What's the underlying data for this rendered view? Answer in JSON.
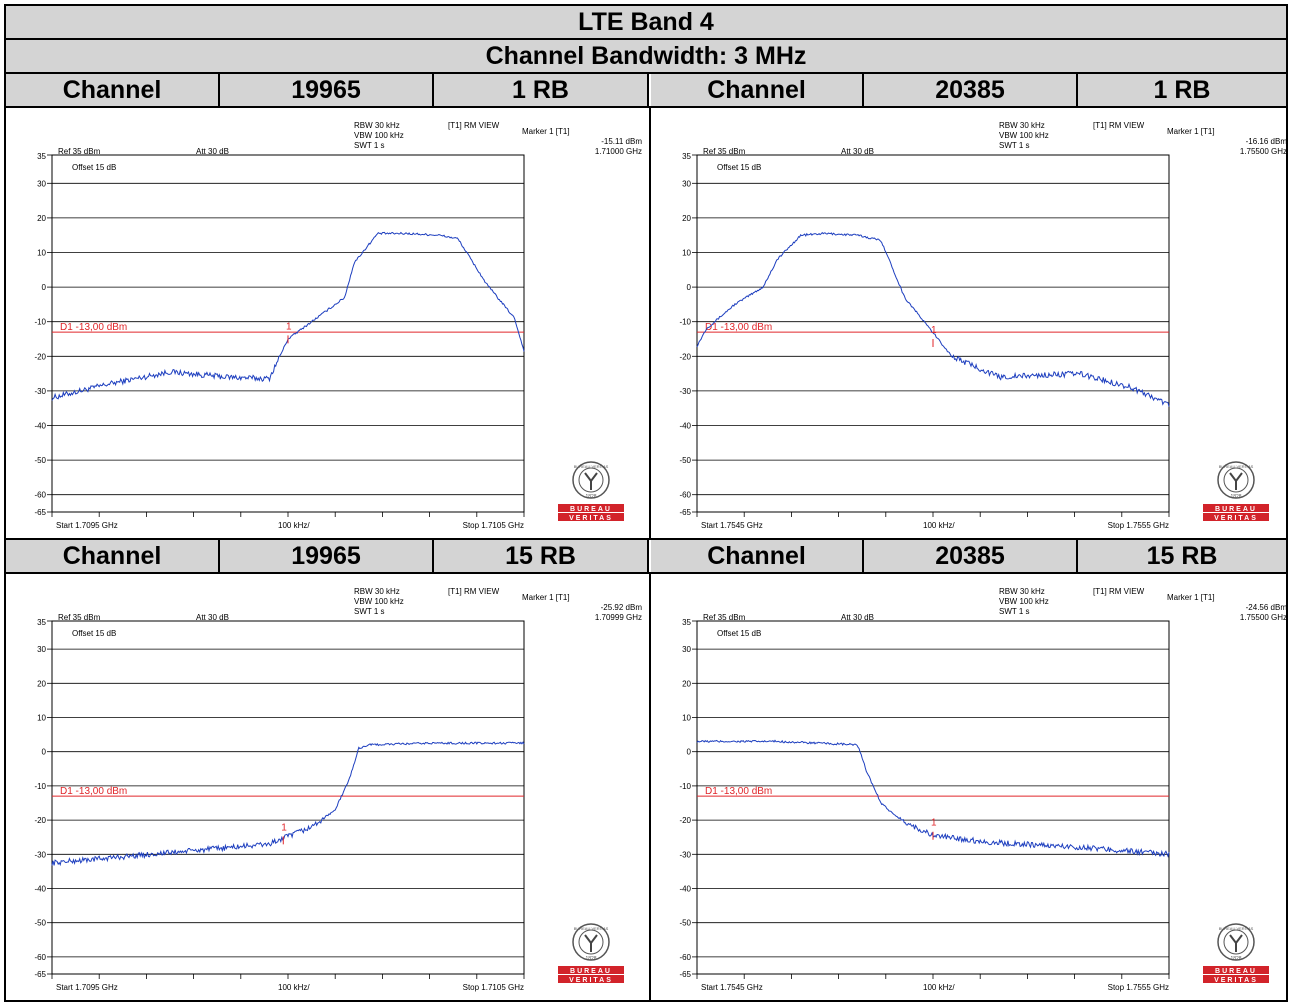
{
  "title": "LTE Band 4",
  "subtitle": "Channel Bandwidth: 3 MHz",
  "rows": [
    {
      "cells": [
        {
          "label": "Channel",
          "value": "19965",
          "rb": "1 RB"
        },
        {
          "label": "Channel",
          "value": "20385",
          "rb": "1 RB"
        }
      ]
    },
    {
      "cells": [
        {
          "label": "Channel",
          "value": "19965",
          "rb": "15 RB"
        },
        {
          "label": "Channel",
          "value": "20385",
          "rb": "15 RB"
        }
      ]
    }
  ],
  "logo_text": {
    "top": "BUREAU",
    "bottom": "VERITAS",
    "seal_ring": "BUREAU VERITAS",
    "seal_year": "1828"
  },
  "colors": {
    "trace": "#1e3fbf",
    "limit": "#e0262a",
    "grid": "#000000",
    "header_bg": "#d4d4d4",
    "logo_red": "#d2232a"
  },
  "chart_data": [
    {
      "type": "line",
      "ref": "Ref 35 dBm",
      "att": "Att  30 dB",
      "offset": "Offset 15 dB",
      "rbw": "RBW 30 kHz",
      "vbw": "VBW 100 kHz",
      "swt": "SWT 1 s",
      "view": "[T1] RM VIEW",
      "marker_label": "Marker 1 [T1]",
      "marker_value": "-15.11 dBm",
      "marker_freq": "1.71000 GHz",
      "limit_label": "D1 -13,00 dBm",
      "limit_dbm": -13,
      "start": "Start 1.7095 GHz",
      "span": "100 kHz/",
      "stop": "Stop 1.7105 GHz",
      "xlim": [
        1.7095,
        1.7105
      ],
      "ylim": [
        -65,
        35
      ],
      "yticks": [
        "35",
        "30",
        "20",
        "10",
        "0",
        "-10",
        "-20",
        "-30",
        "-40",
        "-50",
        "-60",
        "-65"
      ],
      "marker_x": 1.71,
      "marker_y": -15.11,
      "series": [
        {
          "x": [
            1.7095,
            1.70962,
            1.70975,
            1.70987,
            1.70996,
            1.71,
            1.71006,
            1.71012,
            1.71014,
            1.71019,
            1.71025,
            1.71032,
            1.71036,
            1.71042,
            1.71048,
            1.7105
          ],
          "y": [
            -32,
            -28,
            -24.5,
            -26,
            -26.5,
            -15,
            -9,
            -3,
            7,
            15.5,
            15.5,
            15,
            14,
            1,
            -9,
            -18.5
          ]
        }
      ]
    },
    {
      "type": "line",
      "ref": "Ref 35 dBm",
      "att": "Att  30 dB",
      "offset": "Offset 15 dB",
      "rbw": "RBW 30 kHz",
      "vbw": "VBW 100 kHz",
      "swt": "SWT 1 s",
      "view": "[T1] RM VIEW",
      "marker_label": "Marker 1 [T1]",
      "marker_value": "-16.16 dBm",
      "marker_freq": "1.75500 GHz",
      "limit_label": "D1 -13,00 dBm",
      "limit_dbm": -13,
      "start": "Start 1.7545 GHz",
      "span": "100 kHz/",
      "stop": "Stop 1.7555 GHz",
      "xlim": [
        1.7545,
        1.7555
      ],
      "ylim": [
        -65,
        35
      ],
      "yticks": [
        "35",
        "30",
        "20",
        "10",
        "0",
        "-10",
        "-20",
        "-30",
        "-40",
        "-50",
        "-60",
        "-65"
      ],
      "marker_x": 1.755,
      "marker_y": -16.16,
      "series": [
        {
          "x": [
            1.7545,
            1.75452,
            1.75458,
            1.75464,
            1.75467,
            1.75472,
            1.75477,
            1.75484,
            1.75489,
            1.75494,
            1.75504,
            1.75514,
            1.75531,
            1.75542,
            1.7555
          ],
          "y": [
            -17,
            -12,
            -5,
            0,
            8,
            15,
            15.5,
            15,
            13.5,
            -3,
            -20,
            -26,
            -25,
            -29,
            -34
          ]
        }
      ]
    },
    {
      "type": "line",
      "ref": "Ref 35 dBm",
      "att": "Att  30 dB",
      "offset": "Offset 15 dB",
      "rbw": "RBW 30 kHz",
      "vbw": "VBW 100 kHz",
      "swt": "SWT 1 s",
      "view": "[T1] RM VIEW",
      "marker_label": "Marker 1 [T1]",
      "marker_value": "-25.92 dBm",
      "marker_freq": "1.70999 GHz",
      "limit_label": "D1 -13,00 dBm",
      "limit_dbm": -13,
      "start": "Start 1.7095 GHz",
      "span": "100 kHz/",
      "stop": "Stop 1.7105 GHz",
      "xlim": [
        1.7095,
        1.7105
      ],
      "ylim": [
        -65,
        35
      ],
      "yticks": [
        "35",
        "30",
        "20",
        "10",
        "0",
        "-10",
        "-20",
        "-30",
        "-40",
        "-50",
        "-60",
        "-65"
      ],
      "marker_x": 1.70999,
      "marker_y": -25.92,
      "series": [
        {
          "x": [
            1.7095,
            1.70975,
            1.70996,
            1.71005,
            1.7101,
            1.71013,
            1.71015,
            1.71017,
            1.7103,
            1.7105
          ],
          "y": [
            -32.5,
            -29.5,
            -27,
            -22,
            -17,
            -8,
            1,
            2,
            2.5,
            2.5
          ]
        }
      ]
    },
    {
      "type": "line",
      "ref": "Ref 35 dBm",
      "att": "Att  30 dB",
      "offset": "Offset 15 dB",
      "rbw": "RBW 30 kHz",
      "vbw": "VBW 100 kHz",
      "swt": "SWT 1 s",
      "view": "[T1] RM VIEW",
      "marker_label": "Marker 1 [T1]",
      "marker_value": "-24.56 dBm",
      "marker_freq": "1.75500 GHz",
      "limit_label": "D1 -13,00 dBm",
      "limit_dbm": -13,
      "start": "Start 1.7545 GHz",
      "span": "100 kHz/",
      "stop": "Stop 1.7555 GHz",
      "xlim": [
        1.7545,
        1.7555
      ],
      "ylim": [
        -65,
        35
      ],
      "yticks": [
        "35",
        "30",
        "20",
        "10",
        "0",
        "-10",
        "-20",
        "-30",
        "-40",
        "-50",
        "-60",
        "-65"
      ],
      "marker_x": 1.755,
      "marker_y": -24.56,
      "series": [
        {
          "x": [
            1.7545,
            1.75467,
            1.75484,
            1.75486,
            1.75489,
            1.75493,
            1.755,
            1.75512,
            1.75532,
            1.7555
          ],
          "y": [
            3,
            3,
            2,
            -6,
            -15,
            -20,
            -24.5,
            -26.5,
            -28,
            -30
          ]
        }
      ]
    }
  ]
}
